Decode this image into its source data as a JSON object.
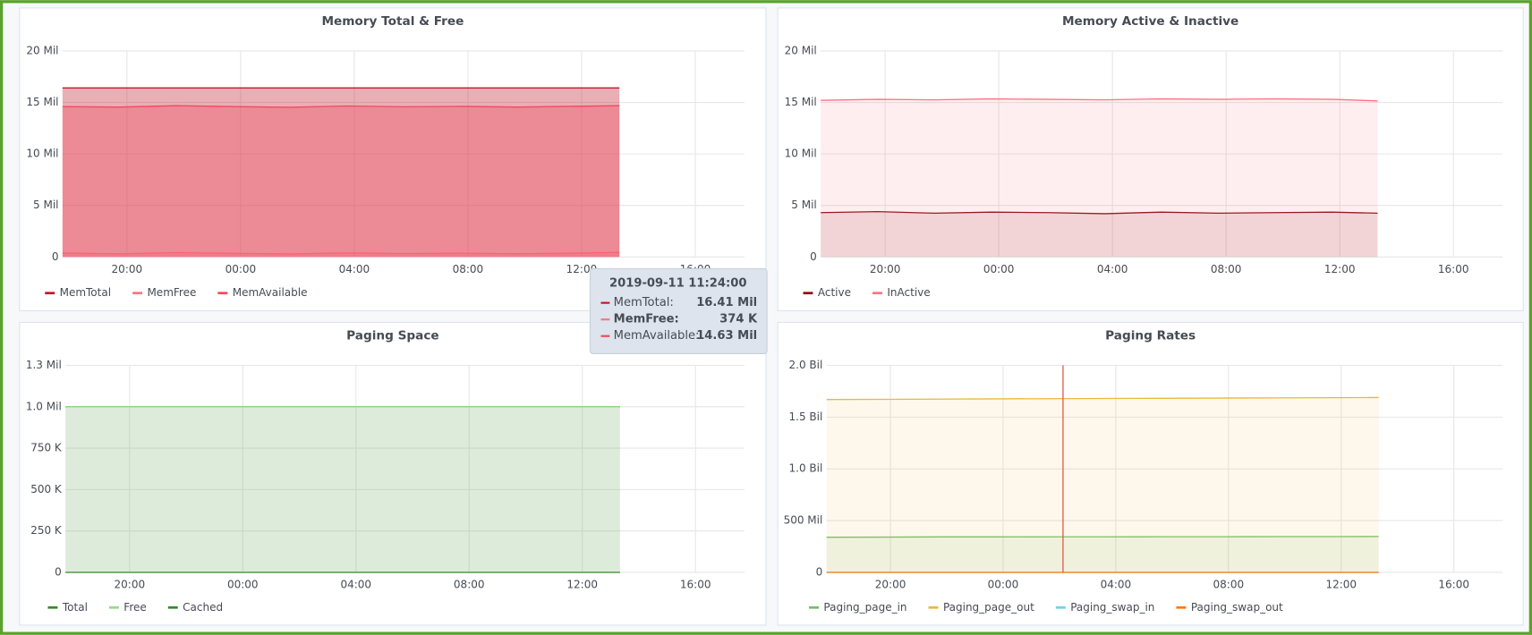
{
  "chart_data": [
    {
      "type": "line",
      "title": "Memory Total & Free",
      "x": [
        "2019-09-10 17:44",
        "2019-09-10 19:44",
        "2019-09-10 21:44",
        "2019-09-10 23:44",
        "2019-09-11 01:44",
        "2019-09-11 03:44",
        "2019-09-11 05:44",
        "2019-09-11 07:44",
        "2019-09-11 09:44",
        "2019-09-11 11:44",
        "2019-09-11 13:20"
      ],
      "series": [
        {
          "name": "MemTotal",
          "color": "#c4162a",
          "values": [
            16410000,
            16410000,
            16410000,
            16410000,
            16410000,
            16410000,
            16410000,
            16410000,
            16410000,
            16410000,
            16410000
          ]
        },
        {
          "name": "MemFree",
          "color": "#ff7383",
          "values": [
            380000,
            300000,
            420000,
            350000,
            290000,
            400000,
            330000,
            360000,
            310000,
            374000,
            450000
          ]
        },
        {
          "name": "MemAvailable",
          "color": "#f2495c",
          "values": [
            14600000,
            14550000,
            14680000,
            14600000,
            14530000,
            14650000,
            14580000,
            14620000,
            14550000,
            14630000,
            14680000
          ]
        }
      ],
      "fill": 0.35,
      "xlim": [
        "2019-09-10 17:44",
        "2019-09-11 17:44"
      ],
      "xticks": [
        {
          "value": "2019-09-10 20:00",
          "label": "20:00"
        },
        {
          "value": "2019-09-11 00:00",
          "label": "00:00"
        },
        {
          "value": "2019-09-11 04:00",
          "label": "04:00"
        },
        {
          "value": "2019-09-11 08:00",
          "label": "08:00"
        },
        {
          "value": "2019-09-11 12:00",
          "label": "12:00"
        },
        {
          "value": "2019-09-11 16:00",
          "label": "16:00"
        }
      ],
      "ylim": [
        0,
        20000000
      ],
      "yticks": [
        0,
        {
          "value": 5000000,
          "label": "5 Mil"
        },
        {
          "value": 10000000,
          "label": "10 Mil"
        },
        {
          "value": 15000000,
          "label": "15 Mil"
        },
        {
          "value": 20000000,
          "label": "20 Mil"
        }
      ],
      "grid": true,
      "legend": "bottom-left"
    },
    {
      "type": "line",
      "title": "Memory Active & Inactive",
      "x": [
        "2019-09-10 17:44",
        "2019-09-10 19:44",
        "2019-09-10 21:44",
        "2019-09-10 23:44",
        "2019-09-11 01:44",
        "2019-09-11 03:44",
        "2019-09-11 05:44",
        "2019-09-11 07:44",
        "2019-09-11 09:44",
        "2019-09-11 11:44",
        "2019-09-11 13:20"
      ],
      "series": [
        {
          "name": "Active",
          "color": "#8f0e17",
          "values": [
            4300000,
            4400000,
            4250000,
            4350000,
            4300000,
            4200000,
            4350000,
            4250000,
            4300000,
            4350000,
            4250000
          ]
        },
        {
          "name": "InActive",
          "color": "#ff7383",
          "values": [
            15200000,
            15300000,
            15250000,
            15350000,
            15300000,
            15250000,
            15350000,
            15300000,
            15350000,
            15300000,
            15150000
          ]
        }
      ],
      "fill": 0.12,
      "xlim": [
        "2019-09-10 17:44",
        "2019-09-11 17:44"
      ],
      "xticks": [
        {
          "value": "2019-09-10 20:00",
          "label": "20:00"
        },
        {
          "value": "2019-09-11 00:00",
          "label": "00:00"
        },
        {
          "value": "2019-09-11 04:00",
          "label": "04:00"
        },
        {
          "value": "2019-09-11 08:00",
          "label": "08:00"
        },
        {
          "value": "2019-09-11 12:00",
          "label": "12:00"
        },
        {
          "value": "2019-09-11 16:00",
          "label": "16:00"
        }
      ],
      "ylim": [
        0,
        20000000
      ],
      "yticks": [
        0,
        {
          "value": 5000000,
          "label": "5 Mil"
        },
        {
          "value": 10000000,
          "label": "10 Mil"
        },
        {
          "value": 15000000,
          "label": "15 Mil"
        },
        {
          "value": 20000000,
          "label": "20 Mil"
        }
      ],
      "grid": true,
      "legend": "bottom-left"
    },
    {
      "type": "line",
      "title": "Paging Space",
      "x": [
        "2019-09-10 17:44",
        "2019-09-10 19:44",
        "2019-09-10 21:44",
        "2019-09-10 23:44",
        "2019-09-11 01:44",
        "2019-09-11 03:44",
        "2019-09-11 05:44",
        "2019-09-11 07:44",
        "2019-09-11 09:44",
        "2019-09-11 11:44",
        "2019-09-11 13:20"
      ],
      "series": [
        {
          "name": "Total",
          "color": "#37872d",
          "values": [
            1000000,
            1000000,
            1000000,
            1000000,
            1000000,
            1000000,
            1000000,
            1000000,
            1000000,
            1000000,
            1000000
          ]
        },
        {
          "name": "Free",
          "color": "#96d98d",
          "values": [
            1000000,
            1000000,
            1000000,
            1000000,
            1000000,
            1000000,
            1000000,
            1000000,
            1000000,
            1000000,
            1000000
          ]
        },
        {
          "name": "Cached",
          "color": "#37872d",
          "values": [
            0,
            0,
            0,
            0,
            0,
            0,
            0,
            0,
            0,
            0,
            0
          ]
        }
      ],
      "fill": 0.12,
      "xlim": [
        "2019-09-10 17:44",
        "2019-09-11 17:44"
      ],
      "xticks": [
        {
          "value": "2019-09-10 20:00",
          "label": "20:00"
        },
        {
          "value": "2019-09-11 00:00",
          "label": "00:00"
        },
        {
          "value": "2019-09-11 04:00",
          "label": "04:00"
        },
        {
          "value": "2019-09-11 08:00",
          "label": "08:00"
        },
        {
          "value": "2019-09-11 12:00",
          "label": "12:00"
        },
        {
          "value": "2019-09-11 16:00",
          "label": "16:00"
        }
      ],
      "ylim": [
        0,
        1250000
      ],
      "yticks": [
        0,
        {
          "value": 250000,
          "label": "250 K"
        },
        {
          "value": 500000,
          "label": "500 K"
        },
        {
          "value": 750000,
          "label": "750 K"
        },
        {
          "value": 1000000,
          "label": "1.0 Mil"
        },
        {
          "value": 1250000,
          "label": "1.3 Mil"
        }
      ],
      "grid": true,
      "legend": "bottom-left"
    },
    {
      "type": "line",
      "title": "Paging Rates",
      "x": [
        "2019-09-10 17:44",
        "2019-09-10 19:44",
        "2019-09-10 21:44",
        "2019-09-10 23:44",
        "2019-09-11 01:44",
        "2019-09-11 03:44",
        "2019-09-11 05:44",
        "2019-09-11 07:44",
        "2019-09-11 09:44",
        "2019-09-11 11:44",
        "2019-09-11 13:20"
      ],
      "series": [
        {
          "name": "Paging_page_in",
          "color": "#73bf69",
          "values": [
            340000000,
            341000000,
            342000000,
            342000000,
            343000000,
            343000000,
            344000000,
            344000000,
            345000000,
            345000000,
            346000000
          ]
        },
        {
          "name": "Paging_page_out",
          "color": "#eab839",
          "values": [
            1670000000,
            1672000000,
            1674000000,
            1676000000,
            1678000000,
            1680000000,
            1682000000,
            1684000000,
            1686000000,
            1688000000,
            1690000000
          ]
        },
        {
          "name": "Paging_swap_in",
          "color": "#73d1e6",
          "values": [
            0,
            0,
            0,
            0,
            0,
            0,
            0,
            0,
            0,
            0,
            0
          ]
        },
        {
          "name": "Paging_swap_out",
          "color": "#ff780a",
          "values": [
            0,
            0,
            0,
            0,
            0,
            0,
            0,
            0,
            0,
            0,
            0
          ]
        }
      ],
      "fill": 0.1,
      "xlim": [
        "2019-09-10 17:44",
        "2019-09-11 17:44"
      ],
      "xticks": [
        {
          "value": "2019-09-10 20:00",
          "label": "20:00"
        },
        {
          "value": "2019-09-11 00:00",
          "label": "00:00"
        },
        {
          "value": "2019-09-11 04:00",
          "label": "04:00"
        },
        {
          "value": "2019-09-11 08:00",
          "label": "08:00"
        },
        {
          "value": "2019-09-11 12:00",
          "label": "12:00"
        },
        {
          "value": "2019-09-11 16:00",
          "label": "16:00"
        }
      ],
      "ylim": [
        0,
        2000000000
      ],
      "yticks": [
        0,
        {
          "value": 500000000,
          "label": "500 Mil"
        },
        {
          "value": 1000000000,
          "label": "1.0 Bil"
        },
        {
          "value": 1500000000,
          "label": "1.5 Bil"
        },
        {
          "value": 2000000000,
          "label": "2.0 Bil"
        }
      ],
      "grid": true,
      "legend": "bottom-left"
    }
  ],
  "tooltip": {
    "title": "2019-09-11 11:24:00",
    "rows": [
      {
        "label": "MemTotal:",
        "value": "16.41 Mil"
      },
      {
        "label": "MemFree:",
        "value": "374 K"
      },
      {
        "label": "MemAvailable:",
        "value": "14.63 Mil"
      }
    ]
  }
}
